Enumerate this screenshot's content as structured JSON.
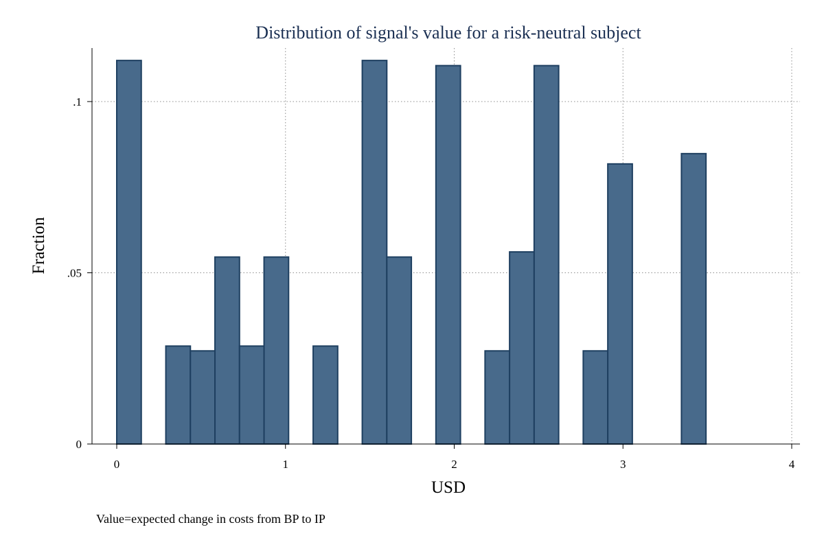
{
  "chart_data": {
    "type": "bar",
    "title": "Distribution of signal's value for a risk-neutral subject",
    "xlabel": "USD",
    "ylabel": "Fraction",
    "note": "Value=expected change in costs from BP to IP",
    "xlim": [
      0,
      4
    ],
    "ylim": [
      0,
      0.1
    ],
    "x_ticks": [
      {
        "value": 0,
        "label": "0"
      },
      {
        "value": 1,
        "label": "1"
      },
      {
        "value": 2,
        "label": "2"
      },
      {
        "value": 3,
        "label": "3"
      },
      {
        "value": 4,
        "label": "4"
      }
    ],
    "y_ticks": [
      {
        "value": 0,
        "label": "0"
      },
      {
        "value": 0.05,
        "label": ".05"
      },
      {
        "value": 0.1,
        "label": ".1"
      }
    ],
    "grid": true,
    "bar_color": "#486a8b",
    "bar_edge_color": "#1e3f60",
    "bin_width": 0.1455,
    "bins": [
      {
        "start": 0.0,
        "value": 0.112
      },
      {
        "start": 0.291,
        "value": 0.0286
      },
      {
        "start": 0.4365,
        "value": 0.0272
      },
      {
        "start": 0.582,
        "value": 0.0546
      },
      {
        "start": 0.7275,
        "value": 0.0286
      },
      {
        "start": 0.873,
        "value": 0.0546
      },
      {
        "start": 1.164,
        "value": 0.0286
      },
      {
        "start": 1.455,
        "value": 0.112
      },
      {
        "start": 1.6005,
        "value": 0.0546
      },
      {
        "start": 1.8915,
        "value": 0.1105
      },
      {
        "start": 2.1825,
        "value": 0.0272
      },
      {
        "start": 2.328,
        "value": 0.0561
      },
      {
        "start": 2.4735,
        "value": 0.1105
      },
      {
        "start": 2.7645,
        "value": 0.0272
      },
      {
        "start": 2.91,
        "value": 0.0818
      },
      {
        "start": 3.3465,
        "value": 0.0848
      }
    ]
  }
}
